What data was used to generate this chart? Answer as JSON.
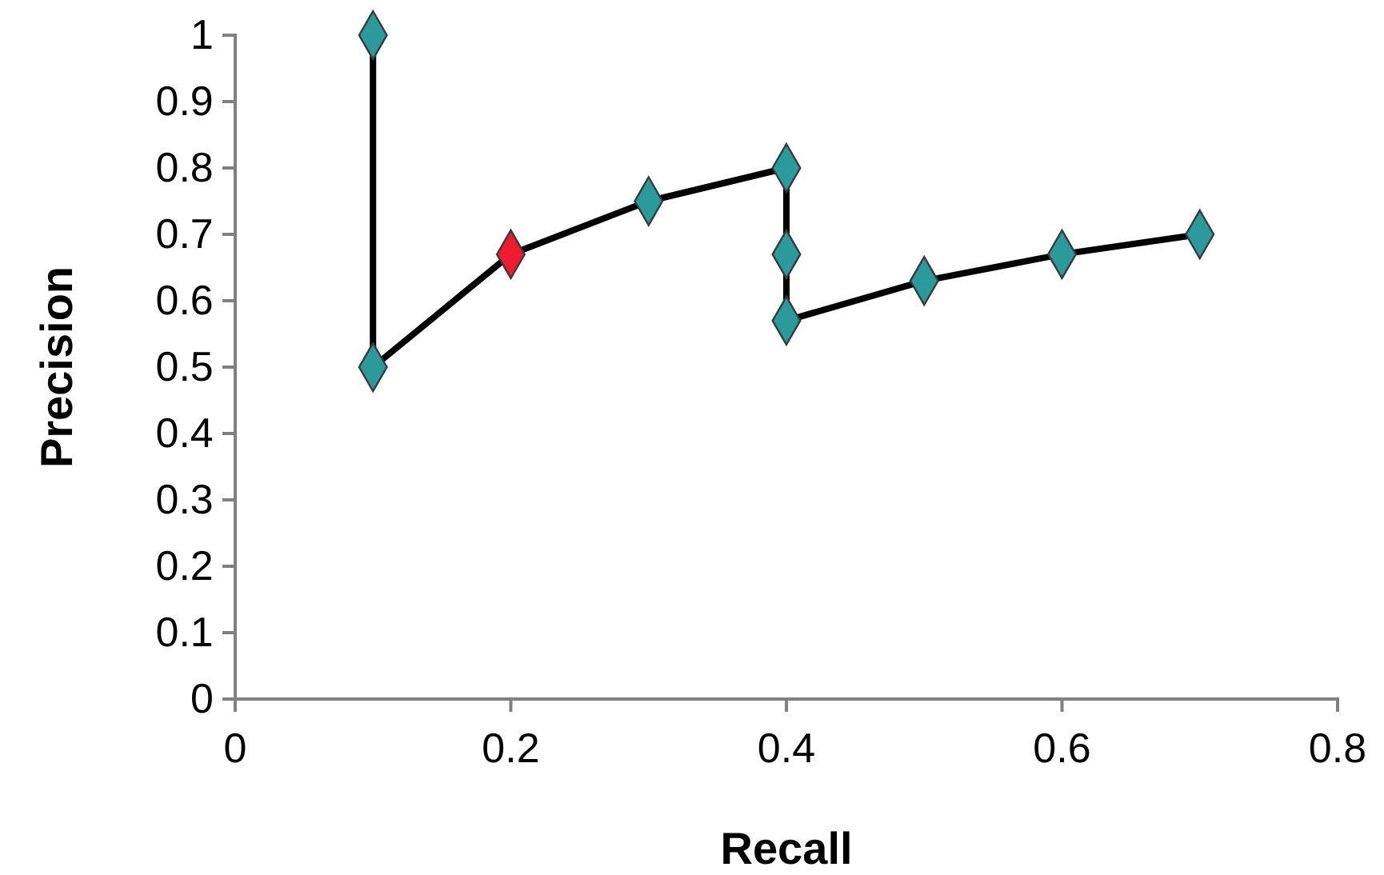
{
  "chart_data": {
    "type": "line",
    "xlabel": "Recall",
    "ylabel": "Precision",
    "x": [
      0.1,
      0.1,
      0.2,
      0.3,
      0.4,
      0.4,
      0.4,
      0.5,
      0.6,
      0.7
    ],
    "series": [
      {
        "color": "#000000",
        "colors": [
          "#2a9a9a",
          "#2a9a9a",
          "#ee1c2e",
          "#2a9a9a",
          "#2a9a9a",
          "#2a9a9a",
          "#2a9a9a",
          "#2a9a9a",
          "#2a9a9a",
          "#2a9a9a"
        ],
        "values": [
          1,
          0.5,
          0.67,
          0.75,
          0.8,
          0.67,
          0.57,
          0.63,
          0.67,
          0.7
        ]
      }
    ],
    "xlim": [
      0,
      0.8
    ],
    "xticks": [
      0,
      0.2,
      0.4,
      0.6,
      0.8
    ],
    "ylim": [
      0,
      1
    ],
    "yticks": [
      0,
      0.1,
      0.2,
      0.3,
      0.4,
      0.5,
      0.6,
      0.7,
      0.8,
      0.9,
      1
    ],
    "grid": false,
    "marker": "diamond",
    "line_style": "solid"
  }
}
